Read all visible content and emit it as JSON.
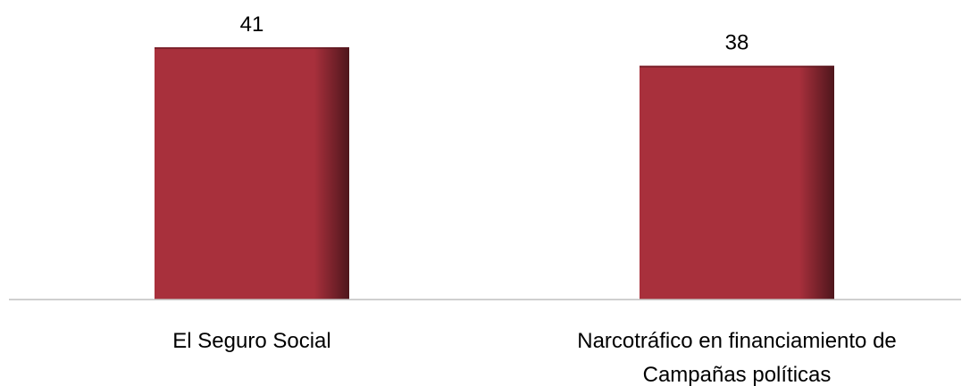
{
  "chart_data": {
    "type": "bar",
    "categories": [
      [
        "El Seguro Social"
      ],
      [
        "Narcotráfico en financiamiento de",
        "Campañas políticas"
      ]
    ],
    "values": [
      41,
      38
    ],
    "data_labels": [
      "41",
      "38"
    ],
    "bar_color": "#A8303C",
    "bar_shadow_color": "#5A1A20",
    "axis_color": "#BFBFBF",
    "title": "",
    "xlabel": "",
    "ylabel": "",
    "ylim": [
      0,
      41
    ],
    "grid": false,
    "legend": "none"
  }
}
